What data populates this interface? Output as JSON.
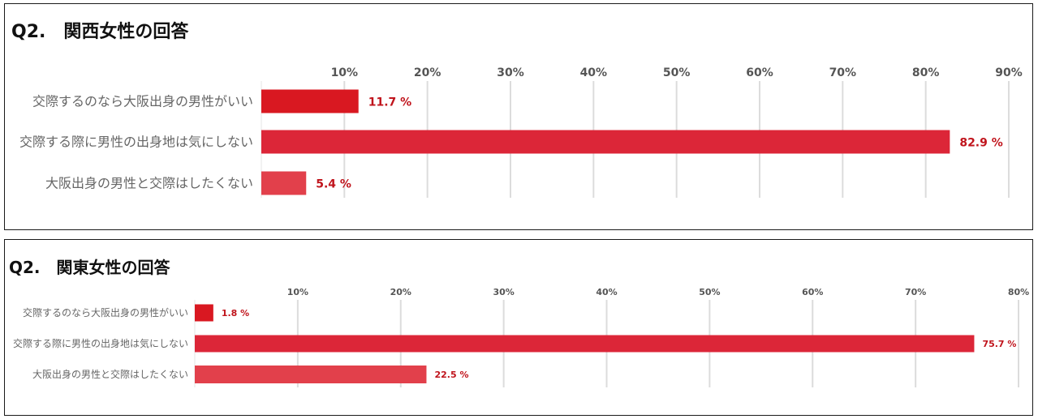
{
  "colors": {
    "bar1": "#d91821",
    "bar2": "#dc2638",
    "bar3": "#e2404b",
    "value_label": "#c0141c",
    "grid": "#dcdcdc",
    "text": "#666666"
  },
  "chart_data": [
    {
      "type": "bar",
      "orientation": "horizontal",
      "title": "Q2.　関西女性の回答",
      "categories": [
        "交際するのなら大阪出身の男性がいい",
        "交際する際に男性の出身地は気にしない",
        "大阪出身の男性と交際はしたくない"
      ],
      "values": [
        11.7,
        82.9,
        5.4
      ],
      "value_labels": [
        "11.7 %",
        "82.9 %",
        "5.4 %"
      ],
      "xlim": [
        0,
        90
      ],
      "ticks": [
        10,
        20,
        30,
        40,
        50,
        60,
        70,
        80,
        90
      ],
      "tick_labels": [
        "10%",
        "20%",
        "30%",
        "40%",
        "50%",
        "60%",
        "70%",
        "80%",
        "90%"
      ],
      "grid": true,
      "legend": "none"
    },
    {
      "type": "bar",
      "orientation": "horizontal",
      "title": "Q2.　関東女性の回答",
      "categories": [
        "交際するのなら大阪出身の男性がいい",
        "交際する際に男性の出身地は気にしない",
        "大阪出身の男性と交際はしたくない"
      ],
      "values": [
        1.8,
        75.7,
        22.5
      ],
      "value_labels": [
        "1.8 %",
        "75.7 %",
        "22.5 %"
      ],
      "xlim": [
        0,
        80
      ],
      "ticks": [
        10,
        20,
        30,
        40,
        50,
        60,
        70,
        80
      ],
      "tick_labels": [
        "10%",
        "20%",
        "30%",
        "40%",
        "50%",
        "60%",
        "70%",
        "80%"
      ],
      "grid": true,
      "legend": "none"
    }
  ]
}
